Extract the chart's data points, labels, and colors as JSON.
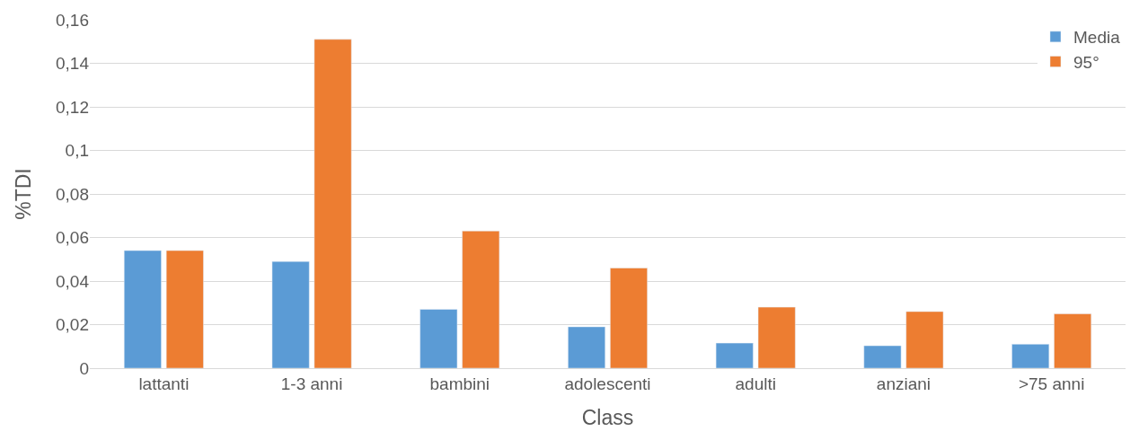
{
  "chart_data": {
    "type": "bar",
    "xlabel": "Class",
    "ylabel": "%TDI",
    "categories": [
      "lattanti",
      "1-3 anni",
      "bambini",
      "adolescenti",
      "adulti",
      "anziani",
      ">75 anni"
    ],
    "series": [
      {
        "name": "Media",
        "color": "#5b9bd5",
        "values": [
          0.054,
          0.049,
          0.027,
          0.019,
          0.0115,
          0.0103,
          0.011
        ]
      },
      {
        "name": "95°",
        "color": "#ed7d31",
        "values": [
          0.054,
          0.151,
          0.063,
          0.046,
          0.028,
          0.026,
          0.025
        ]
      }
    ],
    "ylim": [
      0,
      0.16
    ],
    "yticks": [
      {
        "value": 0,
        "label": "0"
      },
      {
        "value": 0.02,
        "label": "0,02"
      },
      {
        "value": 0.04,
        "label": "0,04"
      },
      {
        "value": 0.06,
        "label": "0,06"
      },
      {
        "value": 0.08,
        "label": "0,08"
      },
      {
        "value": 0.1,
        "label": "0,1"
      },
      {
        "value": 0.12,
        "label": "0,12"
      },
      {
        "value": 0.14,
        "label": "0,14"
      },
      {
        "value": 0.16,
        "label": "0,16"
      }
    ],
    "grid": "y",
    "legend": "top right"
  }
}
